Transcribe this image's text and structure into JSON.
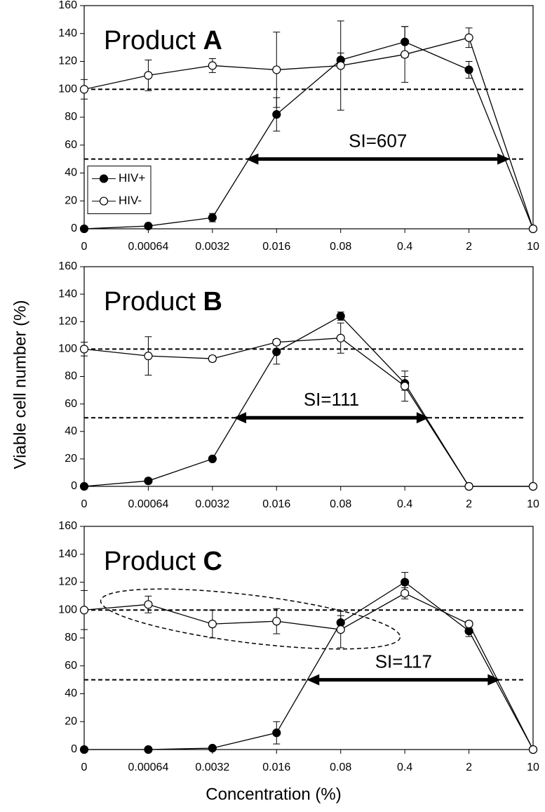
{
  "chart_data": [
    {
      "type": "line",
      "title": "Product A",
      "categories": [
        "0",
        "0.00064",
        "0.0032",
        "0.016",
        "0.08",
        "0.4",
        "2",
        "10"
      ],
      "series": [
        {
          "name": "HIV+",
          "color": "#000000",
          "fill": "#000000",
          "values": [
            0,
            2,
            8,
            82,
            121,
            134,
            114,
            0
          ],
          "errors": [
            0,
            1,
            3,
            12,
            5,
            11,
            6,
            0
          ]
        },
        {
          "name": "HIV-",
          "color": "#000000",
          "fill": "#ffffff",
          "values": [
            100,
            110,
            117,
            114,
            117,
            125,
            137,
            0
          ],
          "errors": [
            7,
            11,
            5,
            27,
            32,
            20,
            7,
            0
          ]
        }
      ],
      "hlines": [
        100,
        50
      ],
      "annotation": {
        "text": "SI=607",
        "y": 50,
        "from": 2.52,
        "to": 6.64
      },
      "ylim": [
        0,
        160
      ],
      "yticks": [
        0,
        20,
        40,
        60,
        80,
        100,
        120,
        140,
        160
      ],
      "legend": "left"
    },
    {
      "type": "line",
      "title": "Product B",
      "y_label": "Viable cell number (%)",
      "categories": [
        "0",
        "0.00064",
        "0.0032",
        "0.016",
        "0.08",
        "0.4",
        "2",
        "10"
      ],
      "series": [
        {
          "color": "#000000",
          "fill": "#000000",
          "values": [
            0,
            4,
            20,
            98,
            124,
            75,
            0,
            0
          ],
          "errors": [
            0,
            1,
            1,
            9,
            3,
            5,
            0,
            0
          ]
        },
        {
          "color": "#000000",
          "fill": "#ffffff",
          "values": [
            100,
            95,
            93,
            105,
            108,
            73,
            0,
            0
          ],
          "errors": [
            5,
            14,
            2,
            2,
            11,
            11,
            0,
            0
          ]
        }
      ],
      "hlines": [
        100,
        50
      ],
      "annotation": {
        "text": "SI=111",
        "y": 50,
        "from": 2.33,
        "to": 5.38
      },
      "ylim": [
        0,
        160
      ],
      "yticks": [
        0,
        20,
        40,
        60,
        80,
        100,
        120,
        140,
        160
      ]
    },
    {
      "type": "line",
      "title": "Product C",
      "x_label": "Concentration (%)",
      "categories": [
        "0",
        "0.00064",
        "0.0032",
        "0.016",
        "0.08",
        "0.4",
        "2",
        "10"
      ],
      "series": [
        {
          "color": "#000000",
          "fill": "#000000",
          "values": [
            0,
            0,
            1,
            12,
            91,
            120,
            85,
            0
          ],
          "errors": [
            0,
            0,
            0,
            8,
            5,
            7,
            4,
            0
          ]
        },
        {
          "color": "#000000",
          "fill": "#ffffff",
          "values": [
            100,
            104,
            90,
            92,
            86,
            112,
            90,
            0
          ],
          "errors": [
            14,
            6,
            10,
            9,
            13,
            4,
            2,
            0
          ]
        }
      ],
      "hlines": [
        100,
        50
      ],
      "annotation": {
        "text": "SI=117",
        "y": 50,
        "from": 3.47,
        "to": 6.49
      },
      "ylim": [
        0,
        160
      ],
      "yticks": [
        0,
        20,
        40,
        60,
        80,
        100,
        120,
        140,
        160
      ]
    }
  ]
}
